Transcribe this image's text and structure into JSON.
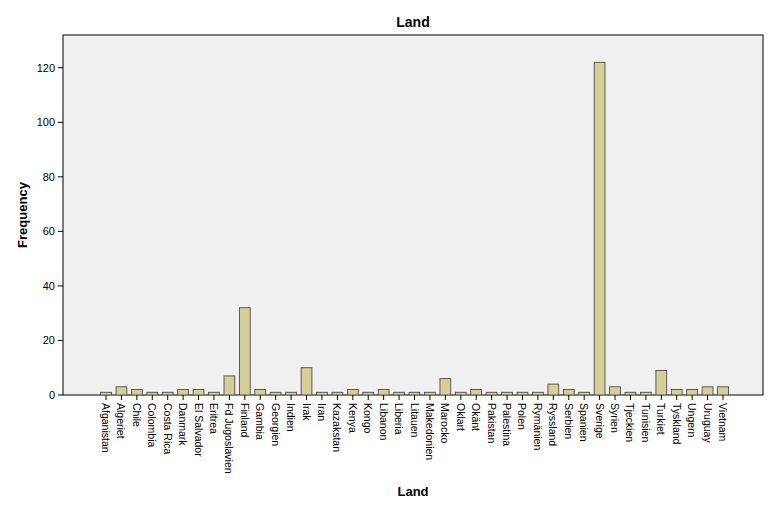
{
  "chart_data": {
    "type": "bar",
    "title": "Land",
    "x_label": "Land",
    "y_label": "Frequency",
    "categories": [
      "Afganistan",
      "Algeriet",
      "Chile",
      "Colombia",
      "Costa Rica",
      "Danmark",
      "El Salvador",
      "Eritrea",
      "Fd Jugoslavien",
      "Finland",
      "Gambia",
      "Georgien",
      "Indien",
      "Irak",
      "Iran",
      "Kazakstan",
      "Kenya",
      "Kongo",
      "Libanon",
      "Liberia",
      "Litauen",
      "Makedonien",
      "Marocko",
      "Oklart",
      "Okänt",
      "Pakistan",
      "Palestina",
      "Polen",
      "Rymänien",
      "Ryssland",
      "Serbien",
      "Spanien",
      "Sverige",
      "Syrien",
      "Tjeckien",
      "Tunisien",
      "Turkiet",
      "Tyskland",
      "Ungern",
      "Uruguay",
      "Vietnam"
    ],
    "values": [
      1,
      3,
      2,
      1,
      1,
      2,
      2,
      1,
      7,
      32,
      2,
      1,
      1,
      10,
      1,
      1,
      2,
      1,
      2,
      1,
      1,
      1,
      6,
      1,
      2,
      1,
      1,
      1,
      1,
      4,
      2,
      1,
      122,
      3,
      1,
      1,
      9,
      2,
      2,
      3,
      3
    ],
    "color": "#d4cf98",
    "ylim": [
      0,
      132
    ],
    "yticks": [
      0,
      20,
      40,
      60,
      80,
      100,
      120
    ],
    "grid": false
  }
}
